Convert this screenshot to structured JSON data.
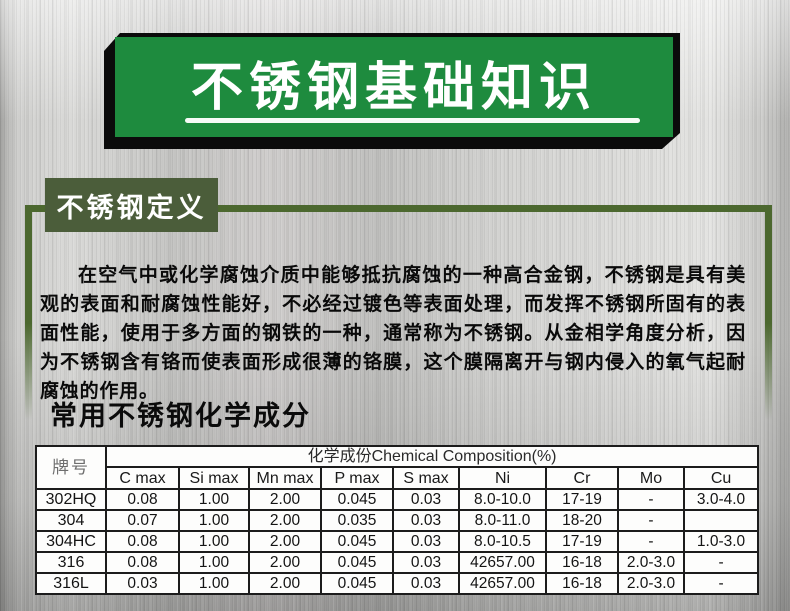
{
  "banner": {
    "title": "不锈钢基础知识"
  },
  "definition": {
    "label": "不锈钢定义",
    "paragraph": "在空气中或化学腐蚀介质中能够抵抗腐蚀的一种高合金钢，不锈钢是具有美观的表面和耐腐蚀性能好，不必经过镀色等表面处理，而发挥不锈钢所固有的表面性能，使用于多方面的钢铁的一种，通常称为不锈钢。从金相学角度分析，因为不锈钢含有铬而使表面形成很薄的铬膜，这个膜隔离开与钢内侵入的氧气起耐腐蚀的作用。"
  },
  "composition": {
    "heading": "常用不锈钢化学成分",
    "table": {
      "grade_header": "牌号",
      "group_header": "化学成份Chemical Composition(%)",
      "columns": [
        "C max",
        "Si max",
        "Mn max",
        "P max",
        "S max",
        "Ni",
        "Cr",
        "Mo",
        "Cu"
      ],
      "rows": [
        {
          "grade": "302HQ",
          "values": [
            "0.08",
            "1.00",
            "2.00",
            "0.045",
            "0.03",
            "8.0-10.0",
            "17-19",
            "-",
            "3.0-4.0"
          ]
        },
        {
          "grade": "304",
          "values": [
            "0.07",
            "1.00",
            "2.00",
            "0.035",
            "0.03",
            "8.0-11.0",
            "18-20",
            "-",
            ""
          ]
        },
        {
          "grade": "304HC",
          "values": [
            "0.08",
            "1.00",
            "2.00",
            "0.045",
            "0.03",
            "8.0-10.5",
            "17-19",
            "-",
            "1.0-3.0"
          ]
        },
        {
          "grade": "316",
          "values": [
            "0.08",
            "1.00",
            "2.00",
            "0.045",
            "0.03",
            "42657.00",
            "16-18",
            "2.0-3.0",
            "-"
          ]
        },
        {
          "grade": "316L",
          "values": [
            "0.03",
            "1.00",
            "2.00",
            "0.045",
            "0.03",
            "42657.00",
            "16-18",
            "2.0-3.0",
            "-"
          ]
        }
      ]
    }
  },
  "colors": {
    "banner_green": "#1e8b3e",
    "label_green": "#4b5d3a",
    "outline_green": "#4c682f",
    "shadow_black": "#0b0b0b"
  }
}
